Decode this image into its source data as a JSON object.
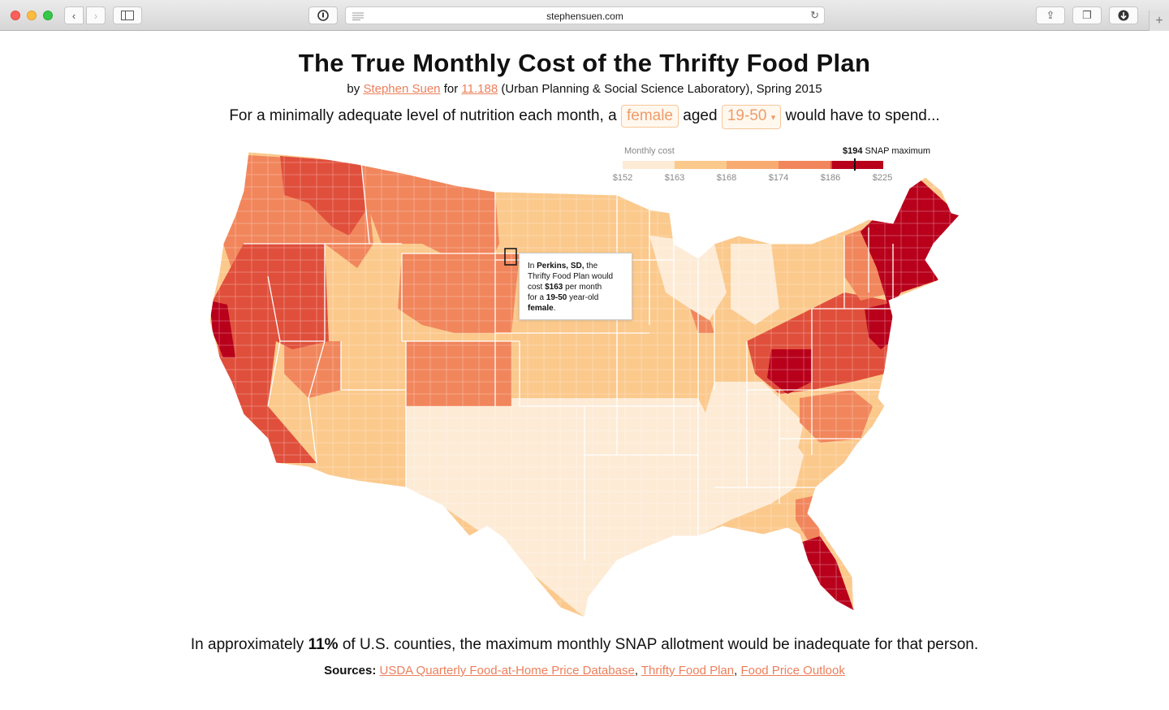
{
  "browser": {
    "url": "stephensuen.com"
  },
  "page": {
    "title": "The True Monthly Cost of the Thrifty Food Plan",
    "byline": {
      "prefix": "by",
      "author": "Stephen Suen",
      "for": "for",
      "course": "11.188",
      "suffix": "(Urban Planning & Social Science Laboratory), Spring 2015"
    },
    "question": {
      "before": "For a minimally adequate level of nutrition each month, a",
      "gender": "female",
      "aged": "aged",
      "age_group": "19-50",
      "after": "would have to spend..."
    },
    "summary": {
      "before": "In approximately",
      "percent": "11%",
      "after": "of U.S. counties, the maximum monthly SNAP allotment would be inadequate for that person."
    },
    "sources": {
      "label": "Sources:",
      "items": [
        "USDA Quarterly Food-at-Home Price Database",
        "Thrifty Food Plan",
        "Food Price Outlook"
      ]
    }
  },
  "legend": {
    "title": "Monthly cost",
    "snap_value": "$194",
    "snap_label": "SNAP maximum",
    "snap_amount": 194,
    "ticks": [
      "$152",
      "$163",
      "$168",
      "$174",
      "$186",
      "$225"
    ],
    "colors": [
      "#fdebd6",
      "#fbc98c",
      "#f8ab70",
      "#f1865c",
      "#e04f3b",
      "#b8001b"
    ]
  },
  "tooltip": {
    "l1a": "In",
    "county": "Perkins, SD,",
    "l1b": "the",
    "l2": "Thrifty Food Plan would",
    "l3a": "cost",
    "cost": "$163",
    "l3b": "per month",
    "l4a": "for a",
    "age": "19-50",
    "l4b": "year-old",
    "gender": "female",
    "end": "."
  }
}
